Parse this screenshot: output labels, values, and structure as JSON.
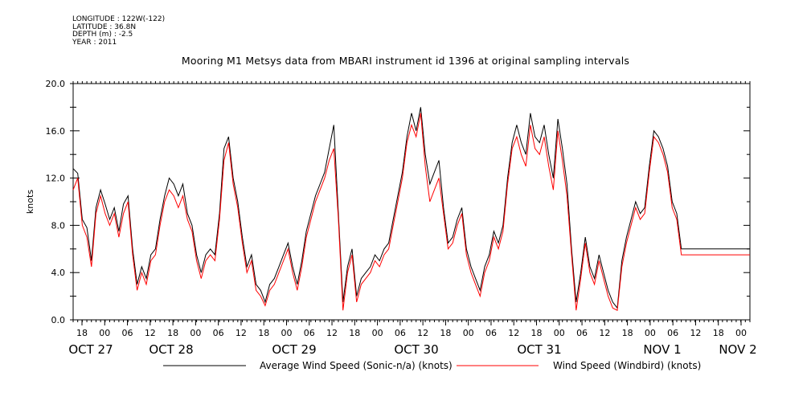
{
  "header": {
    "longitude": "LONGITUDE : 122W(-122)",
    "latitude": "LATITUDE : 36.8N",
    "depth": "DEPTH (m) : -2.5",
    "year": "YEAR : 2011"
  },
  "chart_data": {
    "type": "line",
    "title": "Mooring M1 Metsys data from MBARI instrument id 1396 at original sampling intervals",
    "ylabel": "knots",
    "ylim": [
      0,
      20
    ],
    "yticks": [
      "0.0",
      "4.0",
      "8.0",
      "12.0",
      "16.0",
      "20.0"
    ],
    "xrange_hours": [
      0,
      148
    ],
    "hour_ticks": [
      "18",
      "00",
      "06",
      "12",
      "18",
      "00",
      "06",
      "12",
      "18",
      "00",
      "06",
      "12",
      "18",
      "00",
      "06",
      "12",
      "18",
      "00",
      "06",
      "12",
      "18",
      "00",
      "06",
      "12",
      "18",
      "00",
      "06",
      "12",
      "18",
      "00"
    ],
    "date_labels": [
      "OCT 27",
      "OCT 28",
      "OCT 29",
      "OCT 30",
      "OCT 31",
      "NOV  1",
      "NOV  2"
    ],
    "legend_position": "bottom",
    "colors": {
      "sonic": "#000000",
      "windbird": "#ff0000"
    },
    "series": [
      {
        "name": "Average Wind Speed (Sonic-n/a) (knots)",
        "color": "#000000",
        "x": [
          0,
          1,
          2,
          3,
          4,
          5,
          6,
          7,
          8,
          9,
          10,
          11,
          12,
          13,
          14,
          15,
          16,
          17,
          18,
          19,
          20,
          21,
          22,
          23,
          24,
          25,
          26,
          27,
          28,
          29,
          30,
          31,
          32,
          33,
          34,
          35,
          36,
          37,
          38,
          39,
          40,
          41,
          42,
          43,
          44,
          45,
          46,
          47,
          48,
          49,
          50,
          51,
          52,
          53,
          54,
          55,
          56,
          57,
          58,
          59,
          60,
          61,
          62,
          63,
          64,
          65,
          66,
          67,
          68,
          69,
          70,
          71,
          72,
          73,
          74,
          75,
          76,
          77,
          78,
          79,
          80,
          81,
          82,
          83,
          84,
          85,
          86,
          87,
          88,
          89,
          90,
          91,
          92,
          93,
          94,
          95,
          96,
          97,
          98,
          99,
          100,
          101,
          102,
          103,
          104,
          105,
          106,
          107,
          108,
          109,
          110,
          111,
          112,
          113,
          114,
          115,
          116,
          117,
          118,
          119,
          120,
          121,
          122,
          123,
          124,
          125,
          126,
          127,
          128,
          129,
          130,
          131,
          132,
          133,
          134,
          135,
          136,
          137,
          138,
          139,
          140,
          141,
          142,
          143,
          144,
          145,
          146,
          147,
          148
        ],
        "values": [
          12.8,
          12.4,
          8.5,
          7.8,
          5.0,
          9.5,
          11.0,
          9.8,
          8.5,
          9.5,
          7.5,
          9.8,
          10.5,
          6.0,
          3.0,
          4.5,
          3.5,
          5.5,
          6.0,
          8.5,
          10.5,
          12.0,
          11.5,
          10.5,
          11.5,
          9.0,
          8.0,
          5.5,
          4.0,
          5.5,
          6.0,
          5.5,
          9.0,
          14.5,
          15.5,
          12.0,
          10.0,
          7.0,
          4.5,
          5.5,
          3.0,
          2.5,
          1.5,
          3.0,
          3.5,
          4.5,
          5.5,
          6.5,
          4.5,
          3.0,
          5.0,
          7.5,
          9.0,
          10.5,
          11.5,
          12.5,
          14.5,
          16.5,
          9.0,
          1.5,
          4.5,
          6.0,
          2.0,
          3.5,
          4.0,
          4.5,
          5.5,
          5.0,
          6.0,
          6.5,
          8.5,
          10.5,
          12.5,
          15.5,
          17.5,
          16.0,
          18.0,
          14.0,
          11.5,
          12.5,
          13.5,
          9.5,
          6.5,
          7.0,
          8.5,
          9.5,
          6.0,
          4.5,
          3.5,
          2.5,
          4.5,
          5.5,
          7.5,
          6.5,
          8.0,
          12.0,
          15.0,
          16.5,
          15.0,
          14.0,
          17.5,
          15.5,
          15.0,
          16.5,
          14.0,
          12.0,
          17.0,
          14.5,
          11.5,
          6.0,
          1.5,
          4.0,
          7.0,
          4.5,
          3.5,
          5.5,
          4.0,
          2.5,
          1.5,
          1.0,
          5.0,
          7.0,
          8.5,
          10.0,
          9.0,
          9.5,
          13.0,
          16.0,
          15.5,
          14.5,
          13.0,
          10.0,
          9.0,
          6.0,
          6.0,
          6.0,
          6.0,
          6.0,
          6.0,
          6.0,
          6.0,
          6.0,
          6.0,
          6.0,
          6.0,
          6.0,
          6.0,
          6.0,
          6.0
        ]
      },
      {
        "name": "Wind Speed (Windbird) (knots)",
        "color": "#ff0000",
        "x": [
          0,
          1,
          2,
          3,
          4,
          5,
          6,
          7,
          8,
          9,
          10,
          11,
          12,
          13,
          14,
          15,
          16,
          17,
          18,
          19,
          20,
          21,
          22,
          23,
          24,
          25,
          26,
          27,
          28,
          29,
          30,
          31,
          32,
          33,
          34,
          35,
          36,
          37,
          38,
          39,
          40,
          41,
          42,
          43,
          44,
          45,
          46,
          47,
          48,
          49,
          50,
          51,
          52,
          53,
          54,
          55,
          56,
          57,
          58,
          59,
          60,
          61,
          62,
          63,
          64,
          65,
          66,
          67,
          68,
          69,
          70,
          71,
          72,
          73,
          74,
          75,
          76,
          77,
          78,
          79,
          80,
          81,
          82,
          83,
          84,
          85,
          86,
          87,
          88,
          89,
          90,
          91,
          92,
          93,
          94,
          95,
          96,
          97,
          98,
          99,
          100,
          101,
          102,
          103,
          104,
          105,
          106,
          107,
          108,
          109,
          110,
          111,
          112,
          113,
          114,
          115,
          116,
          117,
          118,
          119,
          120,
          121,
          122,
          123,
          124,
          125,
          126,
          127,
          128,
          129,
          130,
          131,
          132,
          133,
          134,
          135,
          136,
          137,
          138,
          139,
          140,
          141,
          142,
          143,
          144,
          145,
          146,
          147,
          148
        ],
        "values": [
          11.0,
          12.0,
          8.0,
          7.0,
          4.5,
          9.0,
          10.5,
          9.0,
          8.0,
          9.0,
          7.0,
          9.0,
          10.0,
          5.5,
          2.5,
          4.0,
          3.0,
          5.0,
          5.5,
          8.0,
          10.0,
          11.0,
          10.5,
          9.5,
          10.5,
          8.5,
          7.5,
          5.0,
          3.5,
          5.0,
          5.5,
          5.0,
          8.5,
          13.5,
          15.0,
          11.5,
          9.5,
          6.5,
          4.0,
          5.0,
          2.5,
          2.0,
          1.2,
          2.5,
          3.0,
          4.0,
          5.0,
          6.0,
          4.0,
          2.5,
          4.5,
          7.0,
          8.5,
          10.0,
          11.0,
          12.0,
          13.5,
          14.5,
          8.5,
          0.8,
          4.0,
          5.5,
          1.5,
          3.0,
          3.5,
          4.0,
          5.0,
          4.5,
          5.5,
          6.0,
          8.0,
          10.0,
          12.0,
          15.0,
          16.5,
          15.5,
          17.5,
          13.0,
          10.0,
          11.0,
          12.0,
          9.0,
          6.0,
          6.5,
          8.0,
          9.0,
          5.5,
          4.0,
          3.0,
          2.0,
          4.0,
          5.0,
          7.0,
          6.0,
          7.5,
          11.5,
          14.5,
          15.5,
          14.0,
          13.0,
          16.5,
          14.5,
          14.0,
          15.5,
          13.0,
          11.0,
          16.0,
          13.5,
          10.5,
          5.5,
          0.8,
          3.5,
          6.5,
          4.0,
          3.0,
          5.0,
          3.5,
          2.0,
          1.0,
          0.8,
          4.5,
          6.5,
          8.0,
          9.5,
          8.5,
          9.0,
          12.5,
          15.5,
          15.0,
          14.0,
          12.5,
          9.5,
          8.5,
          5.5,
          5.5,
          5.5,
          5.5,
          5.5,
          5.5,
          5.5,
          5.5,
          5.5,
          5.5,
          5.5,
          5.5,
          5.5,
          5.5,
          5.5,
          5.5
        ]
      }
    ]
  }
}
